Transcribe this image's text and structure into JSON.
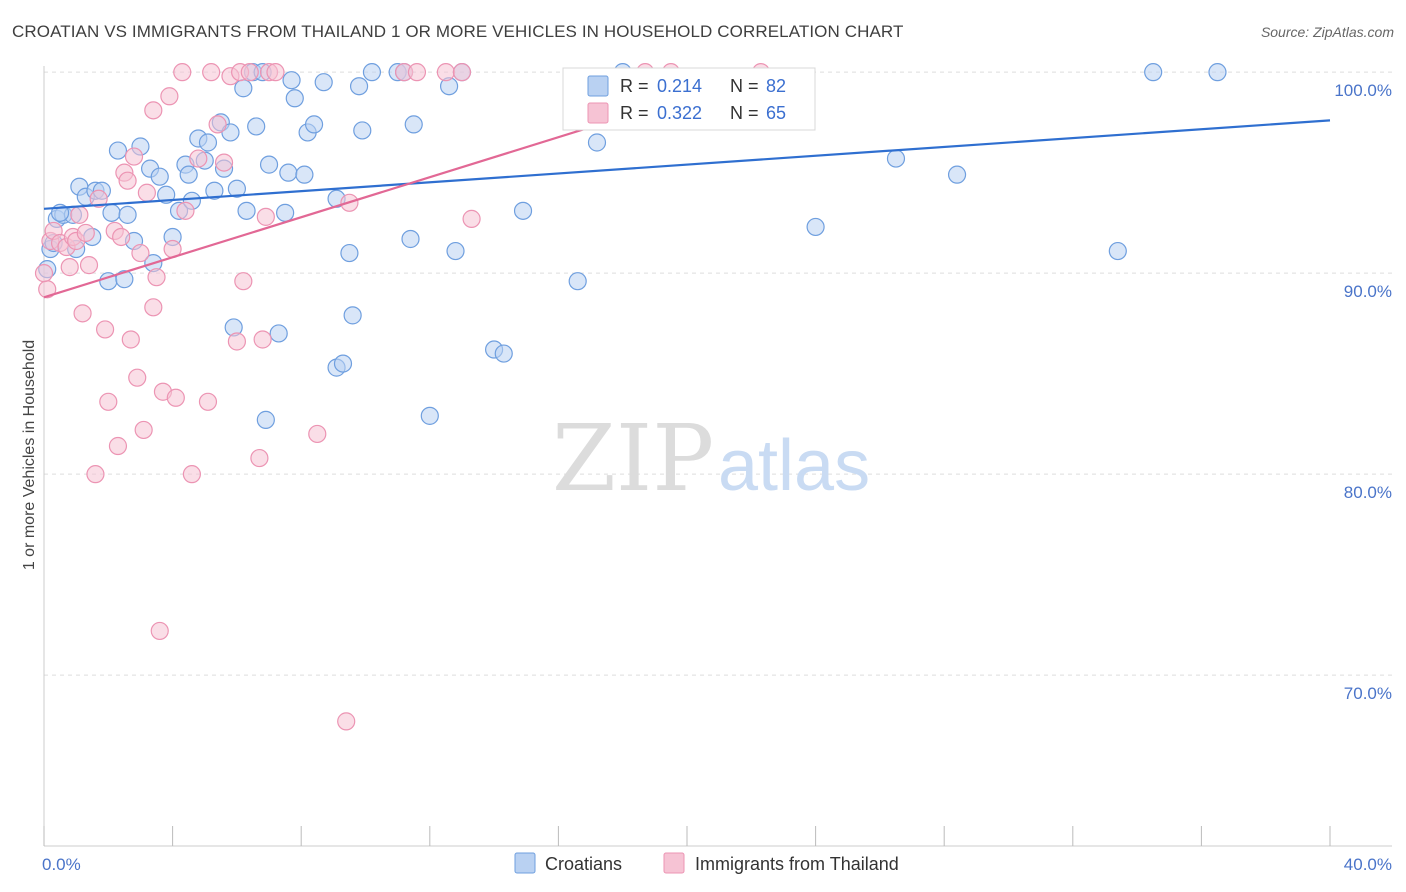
{
  "title": "CROATIAN VS IMMIGRANTS FROM THAILAND 1 OR MORE VEHICLES IN HOUSEHOLD CORRELATION CHART",
  "source": "Source: ZipAtlas.com",
  "watermark": {
    "zip": "ZIP",
    "atlas": "atlas"
  },
  "colors": {
    "blue_fill": "#b9d1f2",
    "blue_stroke": "#6f9fdf",
    "blue_line": "#2f6fd0",
    "pink_fill": "#f6c3d4",
    "pink_stroke": "#ec94b3",
    "pink_line": "#e26895",
    "tick_text": "#4a74c9",
    "grid": "#dddddd"
  },
  "legend": {
    "rows": [
      {
        "r_label": "R =",
        "r_value": "0.214",
        "n_label": "N =",
        "n_value": "82"
      },
      {
        "r_label": "R =",
        "r_value": "0.322",
        "n_label": "N =",
        "n_value": "65"
      }
    ]
  },
  "chart_data": {
    "type": "scatter",
    "title": "CROATIAN VS IMMIGRANTS FROM THAILAND 1 OR MORE VEHICLES IN HOUSEHOLD CORRELATION CHART",
    "xlabel": "",
    "ylabel": "1 or more Vehicles in Household",
    "xlim": [
      0,
      40
    ],
    "ylim": [
      61.5,
      101.5
    ],
    "x_tick_labels": {
      "left": "0.0%",
      "right": "40.0%"
    },
    "y_ticks": [
      {
        "value": 100,
        "label": "100.0%"
      },
      {
        "value": 90,
        "label": "90.0%"
      },
      {
        "value": 80,
        "label": "80.0%"
      },
      {
        "value": 70,
        "label": "70.0%"
      }
    ],
    "grid": true,
    "legend_position": "bottom-center",
    "series": [
      {
        "name": "Croatians",
        "R": 0.214,
        "N": 82,
        "trend": {
          "x0": 0,
          "y0": 93.2,
          "x1": 40,
          "y1": 97.6
        },
        "points": [
          [
            0.2,
            91.2
          ],
          [
            0.4,
            92.7
          ],
          [
            0.6,
            92.9
          ],
          [
            0.9,
            92.9
          ],
          [
            1.1,
            94.3
          ],
          [
            1.3,
            93.8
          ],
          [
            1.5,
            91.8
          ],
          [
            1.6,
            94.1
          ],
          [
            1.8,
            94.1
          ],
          [
            2.0,
            89.6
          ],
          [
            2.1,
            93.0
          ],
          [
            2.3,
            96.1
          ],
          [
            2.5,
            89.7
          ],
          [
            2.6,
            92.9
          ],
          [
            2.8,
            91.6
          ],
          [
            3.0,
            96.3
          ],
          [
            3.3,
            95.2
          ],
          [
            3.4,
            90.5
          ],
          [
            3.6,
            94.8
          ],
          [
            3.8,
            93.9
          ],
          [
            4.0,
            91.8
          ],
          [
            4.2,
            93.1
          ],
          [
            4.4,
            95.4
          ],
          [
            4.5,
            94.9
          ],
          [
            4.6,
            93.6
          ],
          [
            4.8,
            96.7
          ],
          [
            5.0,
            95.6
          ],
          [
            5.1,
            96.5
          ],
          [
            5.3,
            94.1
          ],
          [
            5.5,
            97.5
          ],
          [
            5.6,
            95.2
          ],
          [
            5.8,
            97.0
          ],
          [
            5.9,
            87.3
          ],
          [
            6.0,
            94.2
          ],
          [
            6.2,
            99.2
          ],
          [
            6.3,
            93.1
          ],
          [
            6.5,
            100.0
          ],
          [
            6.6,
            97.3
          ],
          [
            6.8,
            100.0
          ],
          [
            6.9,
            82.7
          ],
          [
            7.0,
            95.4
          ],
          [
            7.3,
            87.0
          ],
          [
            7.5,
            93.0
          ],
          [
            7.6,
            95.0
          ],
          [
            7.7,
            99.6
          ],
          [
            7.8,
            98.7
          ],
          [
            8.1,
            94.9
          ],
          [
            8.2,
            97.0
          ],
          [
            8.4,
            97.4
          ],
          [
            8.7,
            99.5
          ],
          [
            9.1,
            93.7
          ],
          [
            9.1,
            85.3
          ],
          [
            9.3,
            85.5
          ],
          [
            9.5,
            91.0
          ],
          [
            9.6,
            87.9
          ],
          [
            9.8,
            99.3
          ],
          [
            9.9,
            97.1
          ],
          [
            10.2,
            100.0
          ],
          [
            11.0,
            100.0
          ],
          [
            11.2,
            100.0
          ],
          [
            11.4,
            91.7
          ],
          [
            11.5,
            97.4
          ],
          [
            12.0,
            82.9
          ],
          [
            12.6,
            99.3
          ],
          [
            12.8,
            91.1
          ],
          [
            13.0,
            100.0
          ],
          [
            14.0,
            86.2
          ],
          [
            14.3,
            86.0
          ],
          [
            14.9,
            93.1
          ],
          [
            16.6,
            89.6
          ],
          [
            17.2,
            96.5
          ],
          [
            18.0,
            100.0
          ],
          [
            24.0,
            92.3
          ],
          [
            26.5,
            95.7
          ],
          [
            28.4,
            94.9
          ],
          [
            33.4,
            91.1
          ],
          [
            34.5,
            100.0
          ],
          [
            36.5,
            100.0
          ],
          [
            0.1,
            90.2
          ],
          [
            0.3,
            91.5
          ],
          [
            0.5,
            93.0
          ],
          [
            1.0,
            91.2
          ]
        ]
      },
      {
        "name": "Immigrants from Thailand",
        "R": 0.322,
        "N": 65,
        "trend": {
          "x0": 0,
          "y0": 88.8,
          "x1": 22.5,
          "y1": 100.0
        },
        "points": [
          [
            0.1,
            89.2
          ],
          [
            0.2,
            91.6
          ],
          [
            0.3,
            92.1
          ],
          [
            0.5,
            91.5
          ],
          [
            0.7,
            91.3
          ],
          [
            0.8,
            90.3
          ],
          [
            0.9,
            91.8
          ],
          [
            1.0,
            91.6
          ],
          [
            1.1,
            92.9
          ],
          [
            1.2,
            88.0
          ],
          [
            1.3,
            92.0
          ],
          [
            1.4,
            90.4
          ],
          [
            1.6,
            80.0
          ],
          [
            1.7,
            93.7
          ],
          [
            1.9,
            87.2
          ],
          [
            2.0,
            83.6
          ],
          [
            2.2,
            92.1
          ],
          [
            2.3,
            81.4
          ],
          [
            2.4,
            91.8
          ],
          [
            2.5,
            95.0
          ],
          [
            2.6,
            94.6
          ],
          [
            2.7,
            86.7
          ],
          [
            2.8,
            95.8
          ],
          [
            2.9,
            84.8
          ],
          [
            3.0,
            91.0
          ],
          [
            3.1,
            82.2
          ],
          [
            3.2,
            94.0
          ],
          [
            3.4,
            88.3
          ],
          [
            3.4,
            98.1
          ],
          [
            3.5,
            89.8
          ],
          [
            3.6,
            72.2
          ],
          [
            3.7,
            84.1
          ],
          [
            3.9,
            98.8
          ],
          [
            4.0,
            91.2
          ],
          [
            4.1,
            83.8
          ],
          [
            4.3,
            100.0
          ],
          [
            4.4,
            93.1
          ],
          [
            4.6,
            80.0
          ],
          [
            4.8,
            95.7
          ],
          [
            5.1,
            83.6
          ],
          [
            5.2,
            100.0
          ],
          [
            5.4,
            97.4
          ],
          [
            5.6,
            95.5
          ],
          [
            5.8,
            99.8
          ],
          [
            6.0,
            86.6
          ],
          [
            6.1,
            100.0
          ],
          [
            6.2,
            89.6
          ],
          [
            6.4,
            100.0
          ],
          [
            6.7,
            80.8
          ],
          [
            6.8,
            86.7
          ],
          [
            6.9,
            92.8
          ],
          [
            7.0,
            100.0
          ],
          [
            7.2,
            100.0
          ],
          [
            8.5,
            82.0
          ],
          [
            9.4,
            67.7
          ],
          [
            9.5,
            93.5
          ],
          [
            11.2,
            100.0
          ],
          [
            11.6,
            100.0
          ],
          [
            12.5,
            100.0
          ],
          [
            13.0,
            100.0
          ],
          [
            13.3,
            92.7
          ],
          [
            18.7,
            100.0
          ],
          [
            19.5,
            100.0
          ],
          [
            22.3,
            100.0
          ],
          [
            0.0,
            90.0
          ]
        ]
      }
    ]
  }
}
